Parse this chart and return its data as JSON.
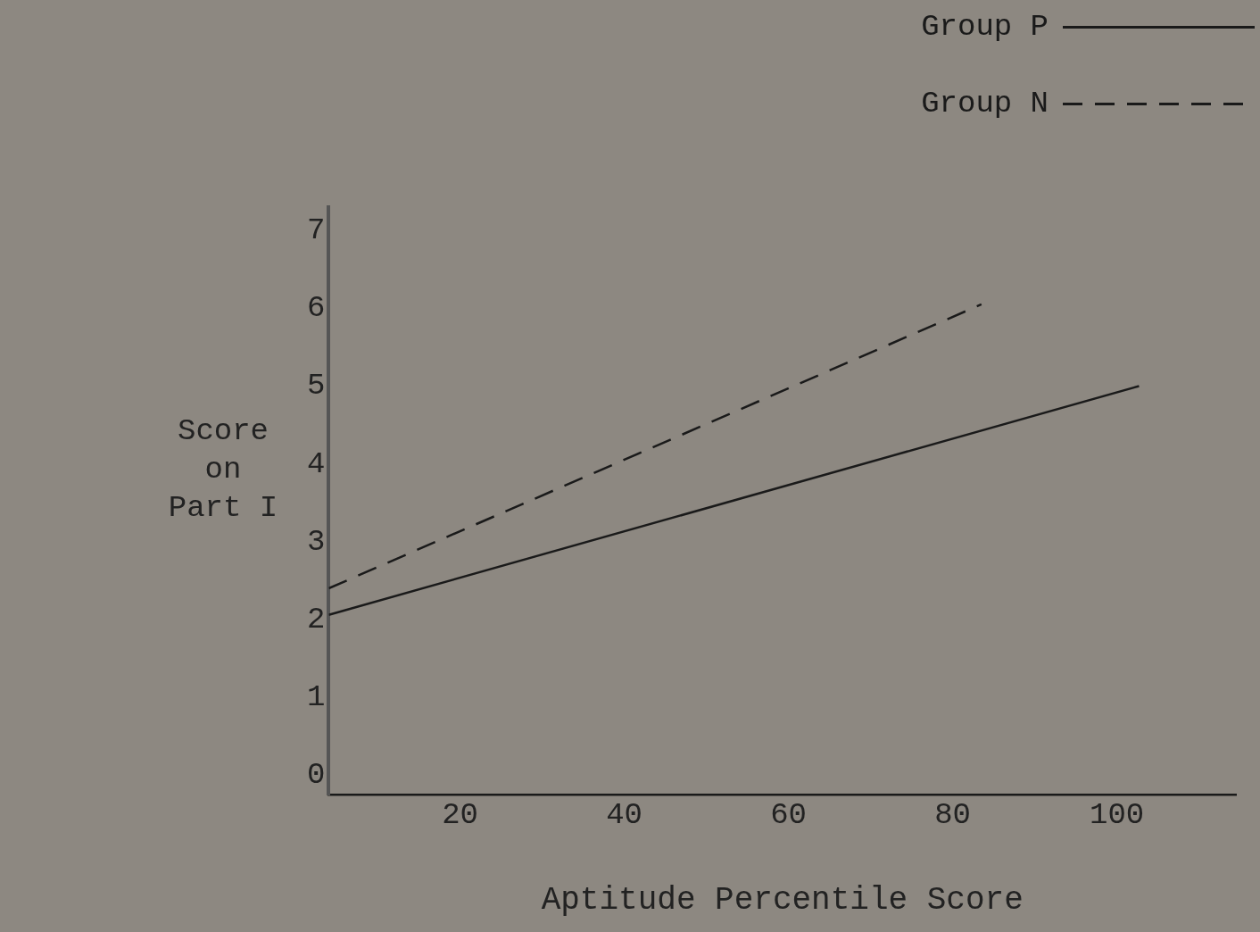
{
  "chart_data": {
    "type": "line",
    "xlabel": "Aptitude Percentile Score",
    "ylabel": "Score on Part I",
    "series": [
      {
        "name": "Group P",
        "color": "#1a1a1a",
        "x": [
          4,
          102.7
        ],
        "values": [
          2.06,
          5.0
        ],
        "line_style": "solid"
      },
      {
        "name": "Group N",
        "color": "#1a1a1a",
        "x": [
          4,
          83.5
        ],
        "values": [
          2.4,
          6.05
        ],
        "line_style": "dashed"
      }
    ],
    "xlim": [
      4,
      114.5
    ],
    "xticks": [
      20,
      40,
      60,
      80,
      100
    ],
    "ylim": [
      -0.25,
      7.3
    ],
    "yticks": [
      0,
      1,
      2,
      3,
      4,
      5,
      6,
      7
    ],
    "grid": false,
    "legend": "top right",
    "marker": "none"
  }
}
